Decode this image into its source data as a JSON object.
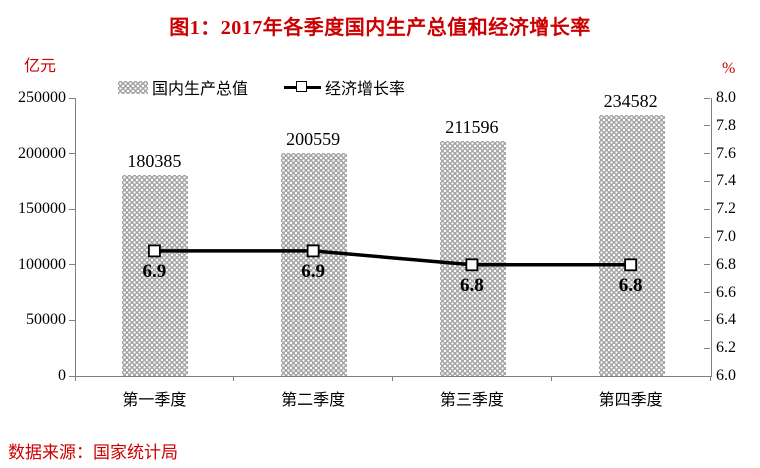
{
  "title": "图1：2017年各季度国内生产总值和经济增长率",
  "source_note": "数据来源：国家统计局",
  "colors": {
    "accent_red": "#cc0000",
    "bar_fill": "#a8a8a8",
    "line_color": "#000000",
    "axis_line": "#808080",
    "marker_fill": "#ffffff"
  },
  "chart_data": {
    "type": "bar+line combo",
    "categories": [
      "第一季度",
      "第二季度",
      "第三季度",
      "第四季度"
    ],
    "series": [
      {
        "name": "国内生产总值",
        "type": "bar",
        "axis": "left",
        "values": [
          180385,
          200559,
          211596,
          234582
        ],
        "labels": [
          "180385",
          "200559",
          "211596",
          "234582"
        ]
      },
      {
        "name": "经济增长率",
        "type": "line",
        "axis": "right",
        "values": [
          6.9,
          6.9,
          6.8,
          6.8
        ],
        "labels": [
          "6.9",
          "6.9",
          "6.8",
          "6.8"
        ]
      }
    ],
    "left_axis": {
      "unit": "亿元",
      "min": 0,
      "max": 250000,
      "step": 50000,
      "ticks": [
        "250000",
        "200000",
        "150000",
        "100000",
        "50000",
        "0"
      ]
    },
    "right_axis": {
      "unit": "%",
      "min": 6.0,
      "max": 8.0,
      "step": 0.2,
      "ticks": [
        "8.0",
        "7.8",
        "7.6",
        "7.4",
        "7.2",
        "7.0",
        "6.8",
        "6.6",
        "6.4",
        "6.2",
        "6.0"
      ]
    },
    "legend": [
      "国内生产总值",
      "经济增长率"
    ],
    "grid": "off",
    "legend_position": "top"
  }
}
